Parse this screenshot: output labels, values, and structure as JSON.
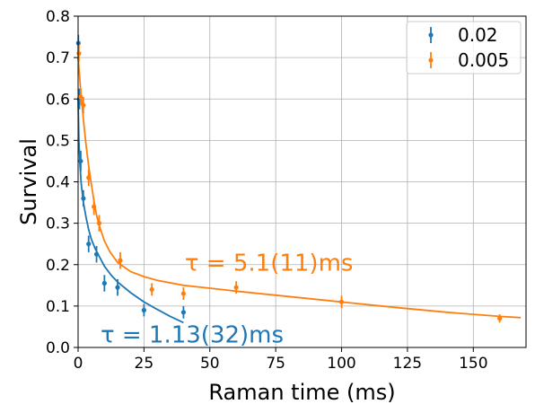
{
  "chart_data": {
    "type": "scatter",
    "xlabel": "Raman time (ms)",
    "ylabel": "Survival",
    "xlim": [
      0,
      170
    ],
    "ylim": [
      0,
      0.8
    ],
    "xticks": [
      "0",
      "25",
      "50",
      "75",
      "100",
      "125",
      "150"
    ],
    "yticks": [
      "0.0",
      "0.1",
      "0.2",
      "0.3",
      "0.4",
      "0.5",
      "0.6",
      "0.7",
      "0.8"
    ],
    "grid": true,
    "legend_position": "top-right",
    "series": [
      {
        "name": "0.02",
        "color": "#1f77b4",
        "x": [
          0.1,
          0.5,
          1,
          2,
          4,
          7,
          10,
          15,
          25,
          40
        ],
        "y": [
          0.735,
          0.6,
          0.45,
          0.36,
          0.25,
          0.225,
          0.155,
          0.145,
          0.09,
          0.085
        ],
        "err": [
          0.02,
          0.025,
          0.025,
          0.02,
          0.02,
          0.02,
          0.02,
          0.02,
          0.015,
          0.015
        ]
      },
      {
        "name": "0.005",
        "color": "#ff7f0e",
        "x": [
          0.3,
          1,
          2,
          4,
          6,
          8,
          16,
          28,
          40,
          60,
          100,
          160
        ],
        "y": [
          0.71,
          0.605,
          0.585,
          0.41,
          0.34,
          0.3,
          0.21,
          0.14,
          0.13,
          0.145,
          0.11,
          0.07
        ],
        "err": [
          0.02,
          0.02,
          0.02,
          0.02,
          0.02,
          0.02,
          0.02,
          0.015,
          0.015,
          0.015,
          0.015,
          0.01
        ]
      }
    ],
    "fits": [
      {
        "series": "0.02",
        "color": "#1f77b4",
        "x": [
          0,
          0.3,
          0.7,
          1.2,
          2,
          3,
          4,
          5,
          6.5,
          8,
          10,
          12.5,
          15,
          20,
          25,
          30,
          35,
          40
        ],
        "y": [
          0.6,
          0.5,
          0.44,
          0.395,
          0.35,
          0.315,
          0.285,
          0.262,
          0.238,
          0.22,
          0.196,
          0.175,
          0.158,
          0.132,
          0.11,
          0.092,
          0.075,
          0.06
        ]
      },
      {
        "series": "0.005",
        "color": "#ff7f0e",
        "x": [
          0,
          0.5,
          1,
          2,
          3,
          4,
          5,
          6,
          7,
          8,
          10,
          12,
          15,
          20,
          25,
          30,
          40,
          50,
          60,
          80,
          100,
          120,
          140,
          160,
          168
        ],
        "y": [
          0.7,
          0.66,
          0.62,
          0.55,
          0.49,
          0.44,
          0.395,
          0.355,
          0.32,
          0.295,
          0.257,
          0.232,
          0.205,
          0.183,
          0.171,
          0.162,
          0.15,
          0.143,
          0.136,
          0.123,
          0.11,
          0.097,
          0.085,
          0.075,
          0.072
        ]
      }
    ],
    "annotations": [
      {
        "text": "τ = 5.1(11)ms",
        "color": "#ff7f0e"
      },
      {
        "text": "τ = 1.13(32)ms",
        "color": "#1f77b4"
      }
    ]
  }
}
